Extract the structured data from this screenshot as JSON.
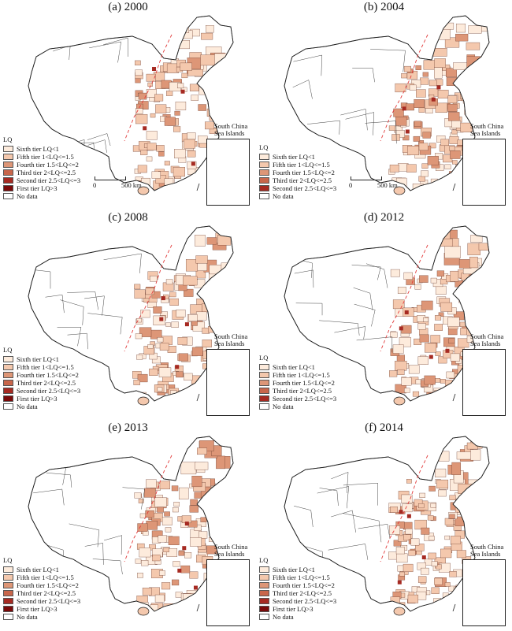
{
  "legend_title": "LQ",
  "tiers": [
    {
      "label": "Sixth tier LQ<1",
      "color": "#fdebdc"
    },
    {
      "label": "Fifth tier 1<LQ<=1.5",
      "color": "#f4c8ad"
    },
    {
      "label": "Fourth tier 1.5<LQ<=2",
      "color": "#dd9677"
    },
    {
      "label": "Third tier 2<LQ<=2.5",
      "color": "#c8664b"
    },
    {
      "label": "Second tier 2.5<LQ<=3",
      "color": "#a62a22"
    },
    {
      "label": "First tier LQ>3",
      "color": "#7a0a0a"
    },
    {
      "label": "No data",
      "color": "#ffffff"
    }
  ],
  "inset_label": "South China Sea Islands",
  "scale": {
    "zero": "0",
    "distance": "500 km"
  },
  "panels": [
    {
      "title": "(a) 2000",
      "tiers_shown": [
        0,
        1,
        2,
        3,
        4,
        5,
        6
      ],
      "scale_shown": true
    },
    {
      "title": "(b) 2004",
      "tiers_shown": [
        0,
        1,
        2,
        3,
        4,
        6
      ],
      "scale_shown": true
    },
    {
      "title": "(c) 2008",
      "tiers_shown": [
        0,
        1,
        2,
        3,
        4,
        5,
        6
      ],
      "scale_shown": false
    },
    {
      "title": "(d) 2012",
      "tiers_shown": [
        0,
        1,
        2,
        3,
        4,
        6
      ],
      "scale_shown": false
    },
    {
      "title": "(e) 2013",
      "tiers_shown": [
        0,
        1,
        2,
        3,
        4,
        5,
        6
      ],
      "scale_shown": false
    },
    {
      "title": "(f) 2014",
      "tiers_shown": [
        0,
        1,
        2,
        3,
        4,
        5,
        6
      ],
      "scale_shown": false
    }
  ]
}
